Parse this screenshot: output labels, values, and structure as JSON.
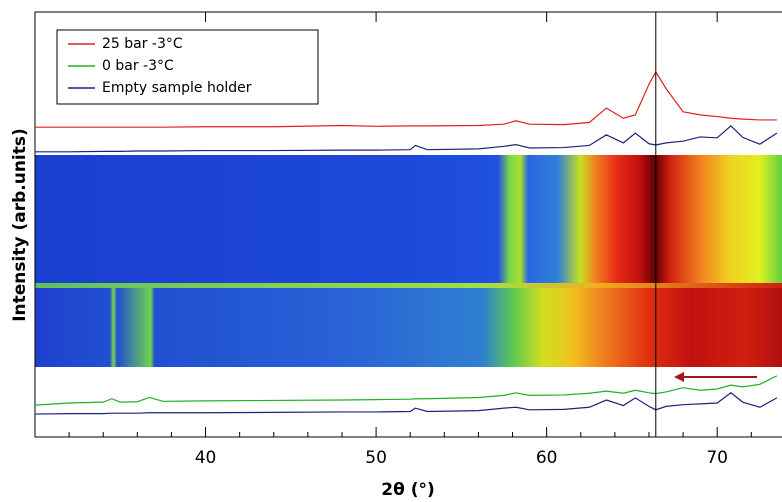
{
  "chart_data": {
    "type": "line",
    "x_label": "2θ (°)",
    "y_label": "Intensity (arb.units)",
    "xlim": [
      30,
      73.8
    ],
    "ylim": [
      0,
      100
    ],
    "xticks": [
      40,
      50,
      60,
      70
    ],
    "xminorticks": [
      32,
      34,
      36,
      38,
      42,
      44,
      46,
      48,
      52,
      54,
      56,
      58,
      62,
      64,
      66,
      68,
      72
    ],
    "vline": 66.4,
    "x": [
      30,
      32,
      34,
      34.5,
      35,
      36,
      36.7,
      37.5,
      40,
      44,
      48,
      50,
      52,
      52.3,
      53,
      56,
      57.5,
      58.2,
      59,
      61,
      62.5,
      63.5,
      64.5,
      65.2,
      66,
      66.4,
      67,
      68,
      69,
      70,
      70.8,
      71.5,
      72.5,
      73.5
    ],
    "series": [
      {
        "name": "25 bar -3°C",
        "color": "#e02020",
        "values": [
          72.9,
          72.9,
          72.9,
          72.9,
          72.9,
          72.9,
          72.9,
          72.9,
          73.0,
          73.0,
          73.3,
          73.1,
          73.2,
          73.2,
          73.2,
          73.3,
          73.6,
          74.4,
          73.6,
          73.5,
          74.0,
          77.4,
          75.0,
          75.8,
          83,
          85.9,
          82,
          76.5,
          75.8,
          75.4,
          75.0,
          74.8,
          74.6,
          74.6
        ]
      },
      {
        "name": "0 bar -3°C",
        "color": "#20b020",
        "values": [
          7.5,
          8.0,
          8.2,
          9.0,
          8.2,
          8.3,
          9.3,
          8.4,
          8.5,
          8.6,
          8.7,
          8.8,
          8.9,
          9.0,
          9.0,
          9.3,
          9.8,
          10.4,
          9.8,
          9.9,
          10.3,
          10.8,
          10.3,
          11.0,
          10.4,
          10.2,
          10.6,
          11.6,
          11.0,
          11.3,
          12.2,
          11.8,
          12.4,
          14.4
        ]
      },
      {
        "name": "Empty sample holder",
        "color": "#1a237e",
        "values": [
          67.1,
          67.1,
          67.2,
          67.2,
          67.2,
          67.3,
          67.3,
          67.3,
          67.4,
          67.4,
          67.5,
          67.5,
          67.6,
          68.6,
          67.6,
          67.8,
          68.4,
          68.8,
          68.0,
          68.1,
          68.6,
          71.1,
          69.2,
          71.5,
          69.0,
          68.7,
          69.2,
          69.6,
          70.6,
          70.4,
          73.2,
          70.5,
          68.9,
          71.5
        ]
      },
      {
        "color": "#1a237e",
        "values": [
          5.4,
          5.5,
          5.5,
          5.6,
          5.6,
          5.6,
          5.7,
          5.7,
          5.7,
          5.8,
          5.9,
          5.9,
          6.0,
          6.8,
          6.0,
          6.2,
          6.8,
          7.0,
          6.4,
          6.5,
          7.0,
          8.7,
          7.4,
          9.2,
          7.2,
          6.4,
          7.2,
          7.6,
          7.8,
          8.0,
          10.4,
          8.2,
          7.0,
          9.2
        ]
      }
    ]
  }
}
